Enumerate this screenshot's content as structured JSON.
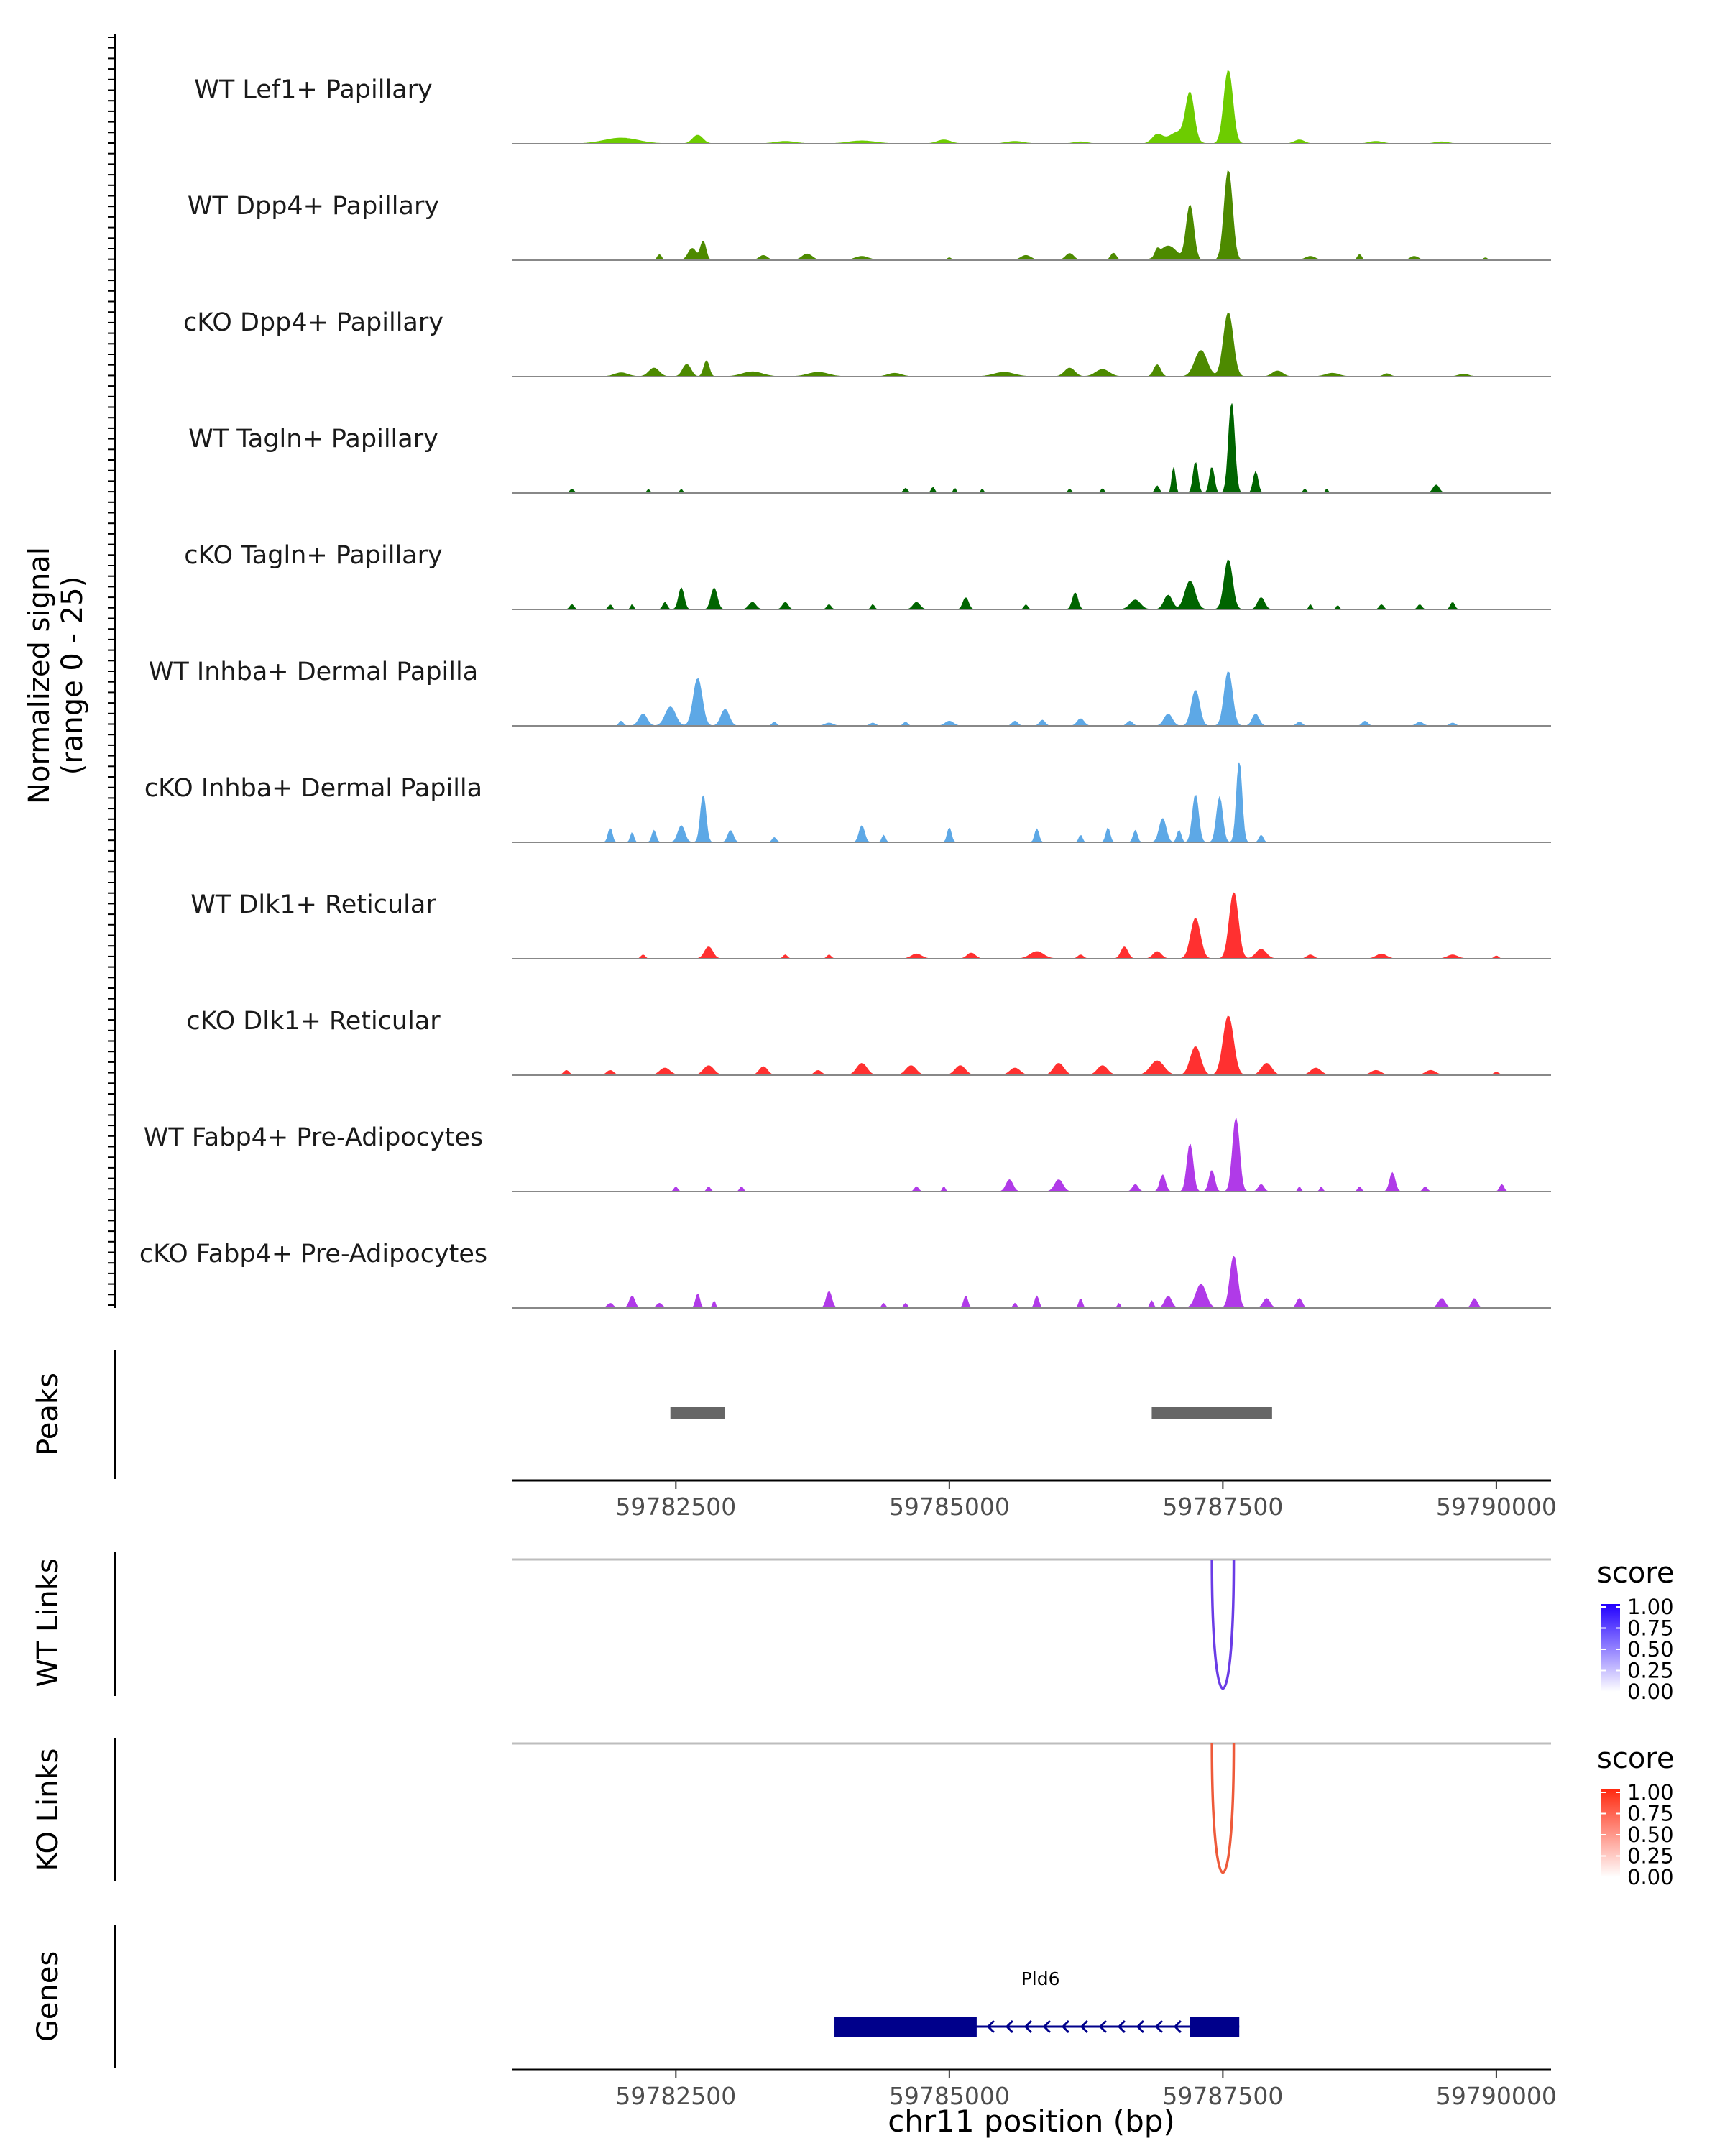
{
  "chart_data": {
    "type": "area",
    "title": "",
    "signal_axis_label": [
      "Normalized signal",
      "(range 0 - 25)"
    ],
    "signal_range": [
      0,
      25
    ],
    "xlabel": "chr11 position (bp)",
    "xlim": [
      59781000,
      59790500
    ],
    "xticks": [
      59782500,
      59785000,
      59787500,
      59790000
    ],
    "xtick_labels": [
      "59782500",
      "59785000",
      "59787500",
      "59790000"
    ],
    "coverage_tracks": [
      {
        "label": "WT Lef1+ Papillary",
        "color": "#6DCC00",
        "peaks": [
          [
            59782000,
            1.2,
            500
          ],
          [
            59782700,
            1.8,
            150
          ],
          [
            59783500,
            0.5,
            300
          ],
          [
            59784200,
            0.6,
            400
          ],
          [
            59784950,
            0.8,
            200
          ],
          [
            59785600,
            0.5,
            250
          ],
          [
            59786200,
            0.4,
            200
          ],
          [
            59786900,
            1.8,
            150
          ],
          [
            59787200,
            9.5,
            120
          ],
          [
            59787550,
            15.5,
            130
          ],
          [
            59787100,
            2.5,
            300
          ],
          [
            59788200,
            0.8,
            150
          ],
          [
            59788900,
            0.5,
            200
          ],
          [
            59789500,
            0.4,
            200
          ]
        ]
      },
      {
        "label": "WT Dpp4+ Papillary",
        "color": "#4D8A00",
        "peaks": [
          [
            59782350,
            1.2,
            60
          ],
          [
            59782650,
            2.5,
            120
          ],
          [
            59782750,
            4.0,
            80
          ],
          [
            59783300,
            1.0,
            120
          ],
          [
            59783700,
            1.3,
            150
          ],
          [
            59784200,
            0.8,
            200
          ],
          [
            59785000,
            0.5,
            60
          ],
          [
            59785700,
            1.0,
            150
          ],
          [
            59786100,
            1.4,
            120
          ],
          [
            59786500,
            1.5,
            80
          ],
          [
            59786900,
            1.3,
            60
          ],
          [
            59787200,
            11.5,
            110
          ],
          [
            59787550,
            19.0,
            120
          ],
          [
            59787000,
            3.0,
            250
          ],
          [
            59788300,
            0.8,
            150
          ],
          [
            59788750,
            1.2,
            60
          ],
          [
            59789250,
            0.8,
            120
          ],
          [
            59789900,
            0.5,
            60
          ]
        ]
      },
      {
        "label": "cKO Dpp4+ Papillary",
        "color": "#4D8A00",
        "peaks": [
          [
            59782000,
            0.8,
            200
          ],
          [
            59782300,
            1.8,
            150
          ],
          [
            59782600,
            2.6,
            120
          ],
          [
            59782780,
            3.3,
            80
          ],
          [
            59783200,
            1.0,
            300
          ],
          [
            59783800,
            0.9,
            300
          ],
          [
            59784500,
            0.7,
            200
          ],
          [
            59785500,
            0.9,
            300
          ],
          [
            59786100,
            1.8,
            150
          ],
          [
            59786400,
            1.5,
            200
          ],
          [
            59786900,
            2.5,
            100
          ],
          [
            59787300,
            5.5,
            180
          ],
          [
            59787550,
            13.5,
            140
          ],
          [
            59788000,
            1.2,
            150
          ],
          [
            59788500,
            0.7,
            200
          ],
          [
            59789000,
            0.6,
            100
          ],
          [
            59789700,
            0.5,
            150
          ]
        ]
      },
      {
        "label": "WT Tagln+ Papillary",
        "color": "#006400",
        "peaks": [
          [
            59781550,
            0.8,
            60
          ],
          [
            59782250,
            0.8,
            40
          ],
          [
            59782550,
            0.8,
            40
          ],
          [
            59784600,
            1.0,
            60
          ],
          [
            59784850,
            1.2,
            50
          ],
          [
            59785050,
            1.0,
            40
          ],
          [
            59785300,
            0.8,
            40
          ],
          [
            59786100,
            0.8,
            50
          ],
          [
            59786400,
            0.9,
            50
          ],
          [
            59786900,
            1.5,
            60
          ],
          [
            59787050,
            5.5,
            50
          ],
          [
            59787250,
            6.5,
            70
          ],
          [
            59787400,
            5.5,
            70
          ],
          [
            59787580,
            19.0,
            90
          ],
          [
            59787800,
            4.5,
            70
          ],
          [
            59788250,
            0.8,
            50
          ],
          [
            59788450,
            0.8,
            40
          ],
          [
            59789450,
            1.7,
            90
          ]
        ]
      },
      {
        "label": "cKO Tagln+ Papillary",
        "color": "#006400",
        "peaks": [
          [
            59781550,
            1.0,
            60
          ],
          [
            59781900,
            1.0,
            50
          ],
          [
            59782100,
            1.0,
            40
          ],
          [
            59782400,
            1.5,
            60
          ],
          [
            59782550,
            4.5,
            80
          ],
          [
            59782850,
            4.5,
            90
          ],
          [
            59783200,
            1.5,
            100
          ],
          [
            59783500,
            1.5,
            80
          ],
          [
            59783900,
            1.0,
            60
          ],
          [
            59784300,
            1.0,
            50
          ],
          [
            59784700,
            1.5,
            100
          ],
          [
            59785150,
            2.5,
            80
          ],
          [
            59785700,
            1.0,
            50
          ],
          [
            59786150,
            3.5,
            80
          ],
          [
            59786700,
            2.0,
            150
          ],
          [
            59787000,
            3.0,
            120
          ],
          [
            59787200,
            6.0,
            150
          ],
          [
            59787550,
            10.5,
            120
          ],
          [
            59787850,
            2.5,
            100
          ],
          [
            59788300,
            1.0,
            40
          ],
          [
            59788550,
            0.8,
            40
          ],
          [
            59788950,
            1.0,
            60
          ],
          [
            59789300,
            1.0,
            60
          ],
          [
            59789600,
            1.5,
            60
          ]
        ]
      },
      {
        "label": "WT Inhba+ Dermal Papilla",
        "color": "#5DA8E6",
        "peaks": [
          [
            59782000,
            1.0,
            60
          ],
          [
            59782200,
            2.5,
            120
          ],
          [
            59782450,
            4.0,
            150
          ],
          [
            59782700,
            10.0,
            130
          ],
          [
            59782950,
            3.5,
            120
          ],
          [
            59783400,
            0.8,
            60
          ],
          [
            59783900,
            0.6,
            120
          ],
          [
            59784300,
            0.6,
            80
          ],
          [
            59784600,
            0.8,
            60
          ],
          [
            59785000,
            1.0,
            120
          ],
          [
            59785600,
            1.0,
            80
          ],
          [
            59785850,
            1.2,
            80
          ],
          [
            59786200,
            1.5,
            100
          ],
          [
            59786650,
            1.0,
            80
          ],
          [
            59787000,
            2.5,
            120
          ],
          [
            59787250,
            7.5,
            120
          ],
          [
            59787550,
            11.5,
            120
          ],
          [
            59787800,
            2.5,
            100
          ],
          [
            59788200,
            0.8,
            80
          ],
          [
            59788800,
            1.0,
            80
          ],
          [
            59789300,
            0.8,
            100
          ],
          [
            59789600,
            0.6,
            80
          ]
        ]
      },
      {
        "label": "cKO Inhba+ Dermal Papilla",
        "color": "#5DA8E6",
        "peaks": [
          [
            59781900,
            3.0,
            60
          ],
          [
            59782100,
            2.0,
            50
          ],
          [
            59782300,
            2.5,
            60
          ],
          [
            59782550,
            3.5,
            100
          ],
          [
            59782750,
            10.0,
            80
          ],
          [
            59783000,
            2.5,
            80
          ],
          [
            59783400,
            1.0,
            60
          ],
          [
            59784200,
            3.5,
            80
          ],
          [
            59784400,
            1.5,
            50
          ],
          [
            59785000,
            3.0,
            60
          ],
          [
            59785800,
            2.8,
            60
          ],
          [
            59786200,
            1.5,
            50
          ],
          [
            59786450,
            3.0,
            60
          ],
          [
            59786700,
            2.5,
            60
          ],
          [
            59786950,
            5.0,
            100
          ],
          [
            59787100,
            2.5,
            60
          ],
          [
            59787250,
            10.0,
            90
          ],
          [
            59787470,
            9.5,
            90
          ],
          [
            59787650,
            17.0,
            80
          ],
          [
            59787850,
            1.5,
            60
          ]
        ]
      },
      {
        "label": "WT Dlk1+ Reticular",
        "color": "#FF3030",
        "peaks": [
          [
            59782200,
            0.8,
            60
          ],
          [
            59782800,
            2.5,
            120
          ],
          [
            59783500,
            0.8,
            60
          ],
          [
            59783900,
            0.8,
            60
          ],
          [
            59784700,
            1.0,
            150
          ],
          [
            59785200,
            1.2,
            120
          ],
          [
            59785800,
            1.5,
            200
          ],
          [
            59786200,
            0.8,
            80
          ],
          [
            59786600,
            2.5,
            100
          ],
          [
            59786900,
            1.5,
            120
          ],
          [
            59787250,
            8.5,
            140
          ],
          [
            59787600,
            14.0,
            130
          ],
          [
            59787850,
            2.0,
            150
          ],
          [
            59788300,
            0.8,
            100
          ],
          [
            59788950,
            1.0,
            150
          ],
          [
            59789600,
            0.8,
            150
          ],
          [
            59790000,
            0.6,
            60
          ]
        ]
      },
      {
        "label": "cKO Dlk1+ Reticular",
        "color": "#FF3030",
        "peaks": [
          [
            59781500,
            1.0,
            80
          ],
          [
            59781900,
            1.0,
            100
          ],
          [
            59782400,
            1.5,
            150
          ],
          [
            59782800,
            2.0,
            150
          ],
          [
            59783300,
            1.8,
            120
          ],
          [
            59783800,
            1.0,
            100
          ],
          [
            59784200,
            2.5,
            150
          ],
          [
            59784650,
            2.0,
            150
          ],
          [
            59785100,
            2.0,
            150
          ],
          [
            59785600,
            1.5,
            150
          ],
          [
            59786000,
            2.5,
            150
          ],
          [
            59786400,
            2.0,
            150
          ],
          [
            59786900,
            3.0,
            200
          ],
          [
            59787250,
            6.0,
            150
          ],
          [
            59787550,
            12.5,
            150
          ],
          [
            59787900,
            2.5,
            150
          ],
          [
            59788350,
            1.5,
            150
          ],
          [
            59788900,
            1.0,
            150
          ],
          [
            59789400,
            1.0,
            150
          ],
          [
            59790000,
            0.6,
            80
          ]
        ]
      },
      {
        "label": "WT Fabp4+ Pre-Adipocytes",
        "color": "#B03AE8",
        "peaks": [
          [
            59782500,
            1.0,
            50
          ],
          [
            59782800,
            1.0,
            50
          ],
          [
            59783100,
            1.0,
            50
          ],
          [
            59784700,
            1.0,
            60
          ],
          [
            59784950,
            1.0,
            40
          ],
          [
            59785550,
            2.5,
            100
          ],
          [
            59786000,
            2.5,
            120
          ],
          [
            59786700,
            1.5,
            80
          ],
          [
            59786950,
            3.5,
            80
          ],
          [
            59787200,
            10.0,
            90
          ],
          [
            59787400,
            4.5,
            80
          ],
          [
            59787620,
            15.5,
            100
          ],
          [
            59787850,
            1.5,
            80
          ],
          [
            59788200,
            1.0,
            40
          ],
          [
            59788400,
            1.0,
            40
          ],
          [
            59788750,
            1.0,
            50
          ],
          [
            59789050,
            4.0,
            80
          ],
          [
            59789350,
            1.0,
            60
          ],
          [
            59790050,
            1.5,
            60
          ]
        ]
      },
      {
        "label": "cKO Fabp4+ Pre-Adipocytes",
        "color": "#B03AE8",
        "peaks": [
          [
            59781900,
            1.0,
            80
          ],
          [
            59782100,
            2.5,
            80
          ],
          [
            59782350,
            1.0,
            80
          ],
          [
            59782700,
            3.0,
            60
          ],
          [
            59782850,
            1.5,
            40
          ],
          [
            59783900,
            3.5,
            80
          ],
          [
            59784400,
            1.0,
            50
          ],
          [
            59784600,
            1.0,
            50
          ],
          [
            59785150,
            2.5,
            60
          ],
          [
            59785600,
            1.0,
            50
          ],
          [
            59785800,
            2.5,
            60
          ],
          [
            59786200,
            2.0,
            50
          ],
          [
            59786550,
            1.0,
            40
          ],
          [
            59786850,
            1.5,
            50
          ],
          [
            59787000,
            2.5,
            100
          ],
          [
            59787300,
            5.0,
            150
          ],
          [
            59787600,
            11.0,
            110
          ],
          [
            59787900,
            2.0,
            100
          ],
          [
            59788200,
            2.0,
            80
          ],
          [
            59789500,
            2.0,
            100
          ],
          [
            59789800,
            2.0,
            80
          ]
        ]
      }
    ],
    "peaks_track": {
      "label": "Peaks",
      "regions": [
        [
          59782450,
          59782950
        ],
        [
          59786850,
          59787950
        ]
      ]
    },
    "link_tracks": [
      {
        "label": "WT Links",
        "legend_title": "score",
        "color_low": "#FFFFFF",
        "color_high": "#2200FF",
        "arc_color": "#6A3CE6",
        "arc_from": 59787400,
        "arc_to": 59787600,
        "legend_ticks": [
          "1.00",
          "0.75",
          "0.50",
          "0.25",
          "0.00"
        ]
      },
      {
        "label": "KO Links",
        "legend_title": "score",
        "color_low": "#FFFFFF",
        "color_high": "#FF2A10",
        "arc_color": "#EE5A3A",
        "arc_from": 59787400,
        "arc_to": 59787600,
        "legend_ticks": [
          "1.00",
          "0.75",
          "0.50",
          "0.25",
          "0.00"
        ]
      }
    ],
    "genes_track": {
      "label": "Genes",
      "gene": "Pld6",
      "color": "#00008B",
      "start": 59783950,
      "end": 59787650,
      "strand": "-",
      "exons": [
        [
          59783950,
          59785250
        ],
        [
          59787200,
          59787650
        ]
      ]
    }
  }
}
